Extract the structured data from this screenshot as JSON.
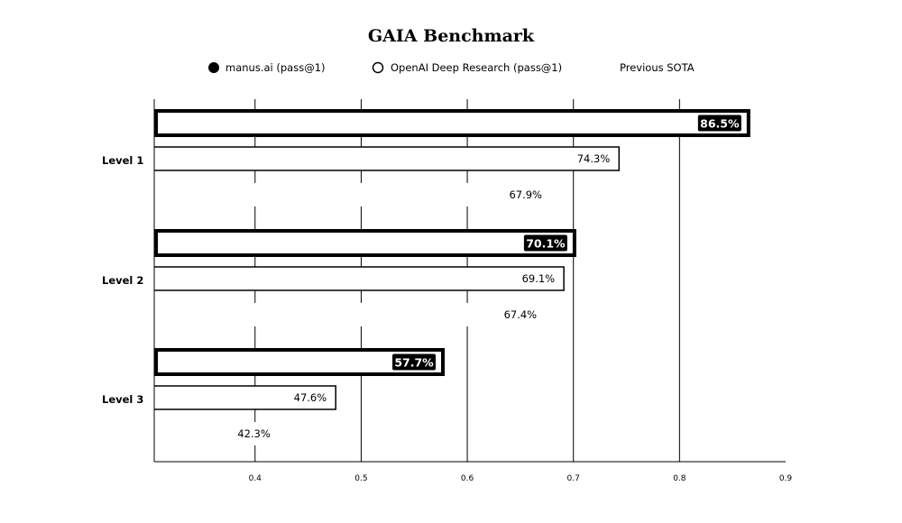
{
  "chart_data": {
    "type": "bar",
    "orientation": "horizontal",
    "title": "GAIA Benchmark",
    "categories": [
      "Level 1",
      "Level 2",
      "Level 3"
    ],
    "series": [
      {
        "name": "manus.ai (pass@1)",
        "values": [
          86.5,
          70.1,
          57.7
        ],
        "labels": [
          "86.5%",
          "70.1%",
          "57.7%"
        ],
        "color": "#000000",
        "marker": "filled-circle"
      },
      {
        "name": "OpenAI Deep Research (pass@1)",
        "values": [
          74.3,
          69.1,
          47.6
        ],
        "labels": [
          "74.3%",
          "69.1%",
          "47.6%"
        ],
        "color": "#000000",
        "marker": "open-circle"
      },
      {
        "name": "Previous SOTA",
        "values": [
          67.9,
          67.4,
          42.3
        ],
        "labels": [
          "67.9%",
          "67.4%",
          "42.3%"
        ],
        "color": "#ffffff",
        "marker": "none"
      }
    ],
    "xticks": [
      "0.4",
      "0.5",
      "0.6",
      "0.7",
      "0.8",
      "0.9"
    ],
    "xlim": [
      0.305,
      0.9
    ],
    "grid": true,
    "legend_position": "top"
  }
}
